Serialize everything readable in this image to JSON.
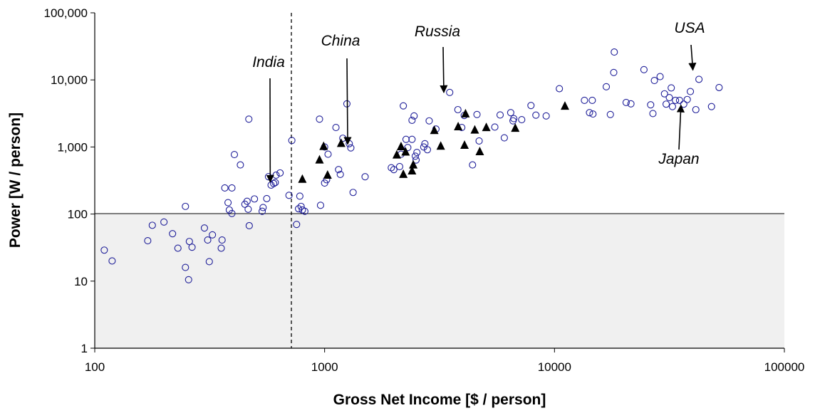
{
  "chart_data": {
    "type": "scatter",
    "x_scale": "log",
    "y_scale": "log",
    "xlim": [
      100,
      100000
    ],
    "ylim": [
      1,
      100000
    ],
    "xlabel": "Gross Net Income [$ / person]",
    "ylabel": "Power [W / person]",
    "x_tick_labels": [
      "100",
      "1000",
      "10000",
      "100000"
    ],
    "y_tick_labels": [
      "1",
      "10",
      "100",
      "1,000",
      "10,000",
      "100,000"
    ],
    "grid": false,
    "shaded_region": {
      "y_from": 1,
      "y_to": 100,
      "color": "#f0f0f0"
    },
    "reference_lines": [
      {
        "orientation": "horizontal",
        "y": 100,
        "style": "solid"
      },
      {
        "orientation": "vertical",
        "x": 720,
        "style": "dashed"
      }
    ],
    "series": [
      {
        "marker": "open-circle",
        "color": "#1f1f99",
        "points": [
          [
            110,
            29
          ],
          [
            119,
            20
          ],
          [
            170,
            40
          ],
          [
            178,
            68
          ],
          [
            200,
            76
          ],
          [
            218,
            51
          ],
          [
            230,
            31
          ],
          [
            248,
            16
          ],
          [
            248,
            130
          ],
          [
            256,
            10.5
          ],
          [
            258,
            39
          ],
          [
            265,
            32
          ],
          [
            300,
            62
          ],
          [
            310,
            41
          ],
          [
            315,
            19.5
          ],
          [
            325,
            49
          ],
          [
            355,
            31
          ],
          [
            358,
            41
          ],
          [
            368,
            245
          ],
          [
            380,
            148
          ],
          [
            385,
            115
          ],
          [
            395,
            102
          ],
          [
            395,
            245
          ],
          [
            405,
            770
          ],
          [
            430,
            540
          ],
          [
            450,
            140
          ],
          [
            460,
            155
          ],
          [
            465,
            118
          ],
          [
            468,
            2600
          ],
          [
            470,
            67
          ],
          [
            495,
            168
          ],
          [
            535,
            110
          ],
          [
            540,
            125
          ],
          [
            560,
            170
          ],
          [
            570,
            360
          ],
          [
            585,
            270
          ],
          [
            600,
            285
          ],
          [
            610,
            295
          ],
          [
            615,
            380
          ],
          [
            640,
            410
          ],
          [
            700,
            190
          ],
          [
            720,
            1250
          ],
          [
            755,
            70
          ],
          [
            770,
            120
          ],
          [
            780,
            185
          ],
          [
            790,
            130
          ],
          [
            800,
            115
          ],
          [
            820,
            110
          ],
          [
            950,
            2600
          ],
          [
            960,
            135
          ],
          [
            1000,
            290
          ],
          [
            1000,
            1000
          ],
          [
            1020,
            325
          ],
          [
            1035,
            780
          ],
          [
            1120,
            1950
          ],
          [
            1150,
            460
          ],
          [
            1170,
            390
          ],
          [
            1200,
            1350
          ],
          [
            1250,
            4400
          ],
          [
            1280,
            1120
          ],
          [
            1300,
            970
          ],
          [
            1330,
            210
          ],
          [
            1500,
            360
          ],
          [
            1950,
            490
          ],
          [
            2000,
            460
          ],
          [
            2120,
            510
          ],
          [
            2150,
            780
          ],
          [
            2200,
            4100
          ],
          [
            2260,
            1300
          ],
          [
            2300,
            980
          ],
          [
            2400,
            2500
          ],
          [
            2450,
            2900
          ],
          [
            2400,
            1300
          ],
          [
            2500,
            640
          ],
          [
            2480,
            730
          ],
          [
            2520,
            830
          ],
          [
            2700,
            1000
          ],
          [
            2730,
            1120
          ],
          [
            2800,
            910
          ],
          [
            2850,
            2450
          ],
          [
            3050,
            1850
          ],
          [
            3500,
            6500
          ],
          [
            3800,
            3600
          ],
          [
            3950,
            1950
          ],
          [
            4050,
            2950
          ],
          [
            4400,
            540
          ],
          [
            4600,
            3050
          ],
          [
            4700,
            1230
          ],
          [
            5500,
            1980
          ],
          [
            5800,
            3000
          ],
          [
            6050,
            1370
          ],
          [
            6450,
            3250
          ],
          [
            6600,
            2450
          ],
          [
            6650,
            2650
          ],
          [
            7200,
            2550
          ],
          [
            7900,
            4150
          ],
          [
            8300,
            2980
          ],
          [
            9200,
            2900
          ],
          [
            10500,
            7400
          ],
          [
            13500,
            4950
          ],
          [
            14200,
            3250
          ],
          [
            14700,
            3100
          ],
          [
            14600,
            4950
          ],
          [
            16800,
            7900
          ],
          [
            17500,
            3050
          ],
          [
            18100,
            12900
          ],
          [
            18200,
            26000
          ],
          [
            20500,
            4600
          ],
          [
            21500,
            4400
          ],
          [
            24500,
            14200
          ],
          [
            26200,
            4250
          ],
          [
            26800,
            3150
          ],
          [
            27200,
            9800
          ],
          [
            28800,
            11200
          ],
          [
            30100,
            6200
          ],
          [
            30600,
            4350
          ],
          [
            31600,
            5450
          ],
          [
            32200,
            7600
          ],
          [
            32600,
            4000
          ],
          [
            33600,
            4950
          ],
          [
            35000,
            4950
          ],
          [
            36500,
            4350
          ],
          [
            37800,
            5100
          ],
          [
            39000,
            6700
          ],
          [
            41200,
            3600
          ],
          [
            42500,
            10200
          ],
          [
            48200,
            4000
          ],
          [
            52000,
            7700
          ]
        ]
      },
      {
        "marker": "filled-triangle",
        "color": "#000000",
        "points": [
          [
            800,
            330
          ],
          [
            950,
            640
          ],
          [
            990,
            1020
          ],
          [
            1030,
            380
          ],
          [
            1180,
            1130
          ],
          [
            2060,
            760
          ],
          [
            2150,
            1010
          ],
          [
            2250,
            840
          ],
          [
            2200,
            390
          ],
          [
            2400,
            440
          ],
          [
            2430,
            540
          ],
          [
            3000,
            1760
          ],
          [
            3200,
            1030
          ],
          [
            3810,
            2000
          ],
          [
            4060,
            1060
          ],
          [
            4100,
            3120
          ],
          [
            4500,
            1790
          ],
          [
            4730,
            850
          ],
          [
            5050,
            1950
          ],
          [
            6750,
            1900
          ],
          [
            11100,
            4050
          ]
        ]
      }
    ],
    "annotations": [
      {
        "text": "India",
        "arrow_to": [
          580,
          300
        ]
      },
      {
        "text": "China",
        "arrow_to": [
          1260,
          1100
        ]
      },
      {
        "text": "Russia",
        "arrow_to": [
          3300,
          6500
        ]
      },
      {
        "text": "USA",
        "arrow_to": [
          40000,
          14000
        ]
      },
      {
        "text": "Japan",
        "arrow_to": [
          35500,
          4200
        ]
      }
    ]
  }
}
